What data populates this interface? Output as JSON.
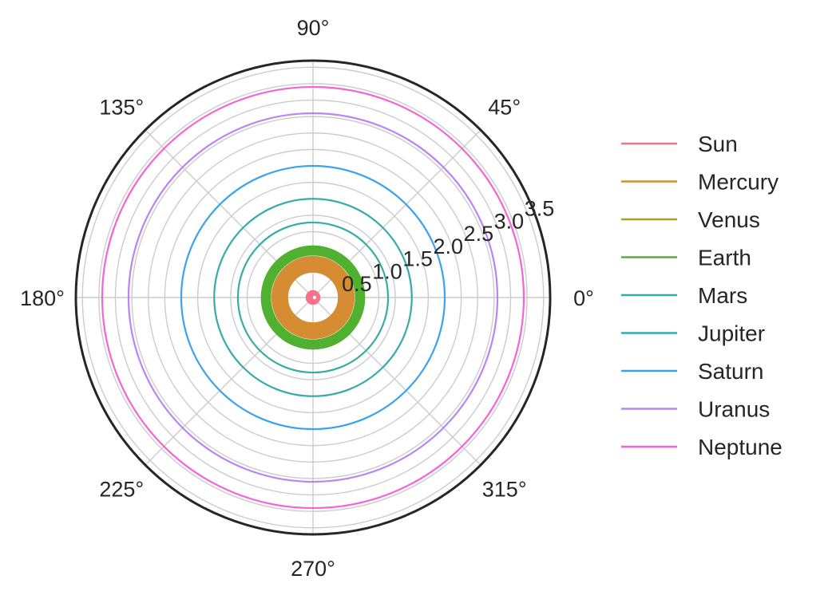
{
  "chart_data": {
    "type": "line",
    "projection": "polar",
    "title": "",
    "theta_ticks": [
      {
        "angle": 0,
        "label": "0°"
      },
      {
        "angle": 45,
        "label": "45°"
      },
      {
        "angle": 90,
        "label": "90°"
      },
      {
        "angle": 135,
        "label": "135°"
      },
      {
        "angle": 180,
        "label": "180°"
      },
      {
        "angle": 225,
        "label": "225°"
      },
      {
        "angle": 270,
        "label": "270°"
      },
      {
        "angle": 315,
        "label": "315°"
      }
    ],
    "r_ticks": [
      {
        "value": 0.5,
        "label": "0.5"
      },
      {
        "value": 1.0,
        "label": "1.0"
      },
      {
        "value": 1.5,
        "label": "1.5"
      },
      {
        "value": 2.0,
        "label": "2.0"
      },
      {
        "value": 2.5,
        "label": "2.5"
      },
      {
        "value": 3.0,
        "label": "3.0"
      },
      {
        "value": 3.5,
        "label": "3.5"
      }
    ],
    "r_gridlines": [
      0.5,
      0.75,
      1.0,
      1.25,
      1.5,
      1.75,
      2.0,
      2.25,
      2.5,
      2.75,
      3.0,
      3.25,
      3.5
    ],
    "rlim": [
      0,
      3.6
    ],
    "grid": true,
    "legend_position": "right",
    "series": [
      {
        "name": "Sun",
        "color": "#f77189",
        "r_min": 0.0,
        "r_max": 0.1
      },
      {
        "name": "Mercury",
        "color": "#d58c32",
        "r_min": 0.39,
        "r_max": 0.62
      },
      {
        "name": "Venus",
        "color": "#a4a031",
        "r_min": 0.72,
        "r_max": 0.72
      },
      {
        "name": "Earth",
        "color": "#50b131",
        "r_min": 0.65,
        "r_max": 0.78
      },
      {
        "name": "Mars",
        "color": "#36ada4",
        "r_min": 1.14,
        "r_max": 1.14
      },
      {
        "name": "Jupiter",
        "color": "#38aaac",
        "r_min": 1.5,
        "r_max": 1.5
      },
      {
        "name": "Saturn",
        "color": "#3ba3ec",
        "r_min": 2.0,
        "r_max": 2.0
      },
      {
        "name": "Uranus",
        "color": "#bb83f4",
        "r_min": 2.8,
        "r_max": 2.8
      },
      {
        "name": "Neptune",
        "color": "#f564d4",
        "r_min": 3.2,
        "r_max": 3.2
      }
    ]
  }
}
